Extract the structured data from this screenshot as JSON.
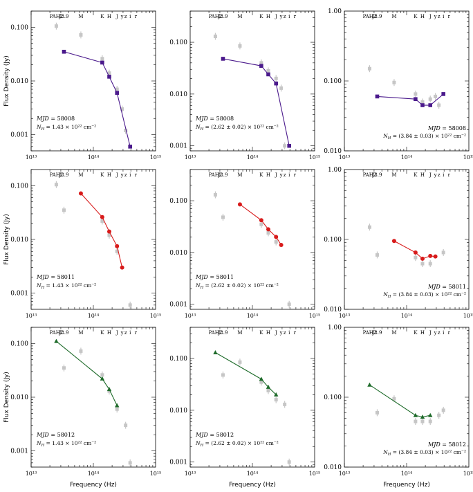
{
  "figure": {
    "y_axis_label": "Flux Density (Jy)",
    "x_axis_label": "Frequency (Hz)"
  },
  "band_labels": [
    "PAH2",
    "J8.9",
    "M",
    "K",
    "H",
    "J",
    "y",
    "z",
    "i",
    "r"
  ],
  "band_freqs": [
    25400000000000.0,
    33700000000000.0,
    63000000000000.0,
    139000000000000.0,
    180000000000000.0,
    240000000000000.0,
    290000000000000.0,
    330000000000000.0,
    390000000000000.0,
    480000000000000.0
  ],
  "colors": {
    "purple": "#4b1a8c",
    "red": "#d81b1b",
    "green": "#1e6b2a",
    "gray": "#c6c6c6"
  },
  "chart_data": [
    {
      "type": "scatter",
      "row": 0,
      "col": 0,
      "xscale": "log",
      "yscale": "log",
      "xlim": [
        10000000000000.0,
        1000000000000000.0
      ],
      "ylim": [
        0.0005,
        0.2
      ],
      "yticks": [
        0.1,
        0.01,
        0.001
      ],
      "yticklabels": [
        "0.100",
        "0.010",
        "0.001"
      ],
      "xticklabels": [
        "10¹³",
        "10¹⁴",
        "10¹⁵"
      ],
      "annotation": {
        "mjd": "MJD = 58008",
        "nh": "N_H = 1.43 × 10²² cm⁻²"
      },
      "observed": {
        "x": [
          25400000000000.0,
          63000000000000.0,
          139000000000000.0,
          180000000000000.0,
          240000000000000.0,
          290000000000000.0,
          330000000000000.0
        ],
        "y": [
          0.105,
          0.072,
          0.026,
          0.014,
          0.007,
          0.003,
          0.0012
        ]
      },
      "model": {
        "color": "#4b1a8c",
        "marker": "square",
        "x": [
          33700000000000.0,
          139000000000000.0,
          180000000000000.0,
          240000000000000.0,
          390000000000000.0
        ],
        "y": [
          0.035,
          0.022,
          0.012,
          0.006,
          0.0006
        ]
      },
      "y_axis_title": true,
      "x_axis_title": false
    },
    {
      "type": "scatter",
      "row": 0,
      "col": 1,
      "xscale": "log",
      "yscale": "log",
      "xlim": [
        10000000000000.0,
        1000000000000000.0
      ],
      "ylim": [
        0.0008,
        0.4
      ],
      "yticks": [
        0.1,
        0.01,
        0.001
      ],
      "yticklabels": [
        "0.100",
        "0.010",
        "0.001"
      ],
      "xticklabels": [
        "10¹³",
        "10¹⁴",
        "10¹⁵"
      ],
      "annotation": {
        "mjd": "MJD = 58008",
        "nh": "N_H = (2.62 ± 0.02) × 10²² cm⁻²"
      },
      "observed": {
        "x": [
          25400000000000.0,
          63000000000000.0,
          139000000000000.0,
          180000000000000.0,
          240000000000000.0,
          290000000000000.0,
          330000000000000.0
        ],
        "y": [
          0.13,
          0.085,
          0.04,
          0.028,
          0.02,
          0.013,
          0.001
        ]
      },
      "model": {
        "color": "#4b1a8c",
        "marker": "square",
        "x": [
          33700000000000.0,
          139000000000000.0,
          180000000000000.0,
          240000000000000.0,
          390000000000000.0
        ],
        "y": [
          0.048,
          0.035,
          0.024,
          0.016,
          0.001
        ]
      },
      "y_axis_title": false,
      "x_axis_title": false
    },
    {
      "type": "scatter",
      "row": 0,
      "col": 2,
      "xscale": "log",
      "yscale": "log",
      "xlim": [
        10000000000000.0,
        1000000000000000.0
      ],
      "ylim": [
        0.01,
        1.0
      ],
      "yticks": [
        1.0,
        0.1,
        0.01
      ],
      "yticklabels": [
        "1.00",
        "0.100",
        "0.010"
      ],
      "xticklabels": [
        "10¹³",
        "10¹⁴",
        "10¹⁵"
      ],
      "annotation": {
        "mjd": "MJD = 58008",
        "nh": "N_H = (3.84 ± 0.03) × 10²² cm⁻²"
      },
      "observed": {
        "x": [
          25400000000000.0,
          63000000000000.0,
          139000000000000.0,
          180000000000000.0,
          240000000000000.0,
          290000000000000.0,
          330000000000000.0
        ],
        "y": [
          0.15,
          0.095,
          0.065,
          0.05,
          0.055,
          0.06,
          0.045
        ]
      },
      "model": {
        "color": "#4b1a8c",
        "marker": "square",
        "x": [
          33700000000000.0,
          139000000000000.0,
          180000000000000.0,
          240000000000000.0,
          390000000000000.0
        ],
        "y": [
          0.06,
          0.055,
          0.045,
          0.045,
          0.065
        ]
      },
      "y_axis_title": false,
      "x_axis_title": false
    },
    {
      "type": "scatter",
      "row": 1,
      "col": 0,
      "xscale": "log",
      "yscale": "log",
      "xlim": [
        10000000000000.0,
        1000000000000000.0
      ],
      "ylim": [
        0.0005,
        0.2
      ],
      "yticks": [
        0.1,
        0.01,
        0.001
      ],
      "yticklabels": [
        "0.100",
        "0.010",
        "0.001"
      ],
      "xticklabels": [
        "10¹³",
        "10¹⁴",
        "10¹⁵"
      ],
      "annotation": {
        "mjd": "MJD = 58011",
        "nh": "N_H = 1.43 × 10²² cm⁻²"
      },
      "observed": {
        "x": [
          25400000000000.0,
          33700000000000.0,
          139000000000000.0,
          180000000000000.0,
          240000000000000.0,
          390000000000000.0
        ],
        "y": [
          0.105,
          0.035,
          0.022,
          0.012,
          0.006,
          0.0006
        ]
      },
      "model": {
        "color": "#d81b1b",
        "marker": "circle",
        "x": [
          63000000000000.0,
          139000000000000.0,
          180000000000000.0,
          240000000000000.0,
          290000000000000.0
        ],
        "y": [
          0.072,
          0.026,
          0.014,
          0.0075,
          0.003
        ]
      },
      "y_axis_title": true,
      "x_axis_title": false
    },
    {
      "type": "scatter",
      "row": 1,
      "col": 1,
      "xscale": "log",
      "yscale": "log",
      "xlim": [
        10000000000000.0,
        1000000000000000.0
      ],
      "ylim": [
        0.0008,
        0.4
      ],
      "yticks": [
        0.1,
        0.01,
        0.001
      ],
      "yticklabels": [
        "0.100",
        "0.010",
        "0.001"
      ],
      "xticklabels": [
        "10¹³",
        "10¹⁴",
        "10¹⁵"
      ],
      "annotation": {
        "mjd": "MJD = 58011",
        "nh": "N_H = (2.62 ± 0.02) × 10²² cm⁻²"
      },
      "observed": {
        "x": [
          25400000000000.0,
          33700000000000.0,
          139000000000000.0,
          180000000000000.0,
          240000000000000.0,
          390000000000000.0
        ],
        "y": [
          0.13,
          0.048,
          0.035,
          0.024,
          0.016,
          0.001
        ]
      },
      "model": {
        "color": "#d81b1b",
        "marker": "circle",
        "x": [
          63000000000000.0,
          139000000000000.0,
          180000000000000.0,
          240000000000000.0,
          290000000000000.0
        ],
        "y": [
          0.085,
          0.042,
          0.028,
          0.02,
          0.014
        ]
      },
      "y_axis_title": false,
      "x_axis_title": false
    },
    {
      "type": "scatter",
      "row": 1,
      "col": 2,
      "xscale": "log",
      "yscale": "log",
      "xlim": [
        10000000000000.0,
        1000000000000000.0
      ],
      "ylim": [
        0.01,
        1.0
      ],
      "yticks": [
        1.0,
        0.1,
        0.01
      ],
      "yticklabels": [
        "1.00",
        "0.100",
        "0.010"
      ],
      "xticklabels": [
        "10¹³",
        "10¹⁴",
        "10¹⁵"
      ],
      "annotation": {
        "mjd": "MJD = 58011",
        "nh": "N_H = (3.84 ± 0.03) × 10²² cm⁻²"
      },
      "observed": {
        "x": [
          25400000000000.0,
          33700000000000.0,
          139000000000000.0,
          180000000000000.0,
          240000000000000.0,
          390000000000000.0
        ],
        "y": [
          0.15,
          0.06,
          0.055,
          0.045,
          0.045,
          0.065
        ]
      },
      "model": {
        "color": "#d81b1b",
        "marker": "circle",
        "x": [
          63000000000000.0,
          139000000000000.0,
          180000000000000.0,
          240000000000000.0,
          290000000000000.0
        ],
        "y": [
          0.095,
          0.065,
          0.053,
          0.058,
          0.057
        ]
      },
      "y_axis_title": false,
      "x_axis_title": false
    },
    {
      "type": "scatter",
      "row": 2,
      "col": 0,
      "xscale": "log",
      "yscale": "log",
      "xlim": [
        10000000000000.0,
        1000000000000000.0
      ],
      "ylim": [
        0.0005,
        0.2
      ],
      "yticks": [
        0.1,
        0.01,
        0.001
      ],
      "yticklabels": [
        "0.100",
        "0.010",
        "0.001"
      ],
      "xticklabels": [
        "10¹³",
        "10¹⁴",
        "10¹⁵"
      ],
      "annotation": {
        "mjd": "MJD = 58012",
        "nh": "N_H = 1.43 × 10²² cm⁻²"
      },
      "observed": {
        "x": [
          33700000000000.0,
          63000000000000.0,
          139000000000000.0,
          180000000000000.0,
          240000000000000.0,
          330000000000000.0,
          390000000000000.0
        ],
        "y": [
          0.035,
          0.072,
          0.026,
          0.013,
          0.006,
          0.003,
          0.0006
        ]
      },
      "model": {
        "color": "#1e6b2a",
        "marker": "triangle",
        "x": [
          25400000000000.0,
          139000000000000.0,
          180000000000000.0,
          240000000000000.0
        ],
        "y": [
          0.11,
          0.022,
          0.014,
          0.007
        ]
      },
      "y_axis_title": true,
      "x_axis_title": true
    },
    {
      "type": "scatter",
      "row": 2,
      "col": 1,
      "xscale": "log",
      "yscale": "log",
      "xlim": [
        10000000000000.0,
        1000000000000000.0
      ],
      "ylim": [
        0.0008,
        0.4
      ],
      "yticks": [
        0.1,
        0.01,
        0.001
      ],
      "yticklabels": [
        "0.100",
        "0.010",
        "0.001"
      ],
      "xticklabels": [
        "10¹³",
        "10¹⁴",
        "10¹⁵"
      ],
      "annotation": {
        "mjd": "MJD = 58012",
        "nh": "N_H = (2.62 ± 0.02) × 10²² cm⁻²"
      },
      "observed": {
        "x": [
          33700000000000.0,
          63000000000000.0,
          139000000000000.0,
          180000000000000.0,
          240000000000000.0,
          330000000000000.0,
          390000000000000.0
        ],
        "y": [
          0.048,
          0.085,
          0.035,
          0.024,
          0.016,
          0.013,
          0.001
        ]
      },
      "model": {
        "color": "#1e6b2a",
        "marker": "triangle",
        "x": [
          25400000000000.0,
          139000000000000.0,
          180000000000000.0,
          240000000000000.0
        ],
        "y": [
          0.13,
          0.04,
          0.028,
          0.02
        ]
      },
      "y_axis_title": false,
      "x_axis_title": true
    },
    {
      "type": "scatter",
      "row": 2,
      "col": 2,
      "xscale": "log",
      "yscale": "log",
      "xlim": [
        10000000000000.0,
        1000000000000000.0
      ],
      "ylim": [
        0.01,
        1.0
      ],
      "yticks": [
        1.0,
        0.1,
        0.01
      ],
      "yticklabels": [
        "1.00",
        "0.100",
        "0.010"
      ],
      "xticklabels": [
        "10¹³",
        "10¹⁴",
        "10¹⁵"
      ],
      "annotation": {
        "mjd": "MJD = 58012",
        "nh": "N_H = (3.84 ± 0.03) × 10²² cm⁻²"
      },
      "observed": {
        "x": [
          33700000000000.0,
          63000000000000.0,
          139000000000000.0,
          180000000000000.0,
          240000000000000.0,
          330000000000000.0,
          390000000000000.0
        ],
        "y": [
          0.06,
          0.095,
          0.045,
          0.045,
          0.045,
          0.055,
          0.065
        ]
      },
      "model": {
        "color": "#1e6b2a",
        "marker": "triangle",
        "x": [
          25400000000000.0,
          139000000000000.0,
          180000000000000.0,
          240000000000000.0
        ],
        "y": [
          0.15,
          0.055,
          0.052,
          0.055
        ]
      },
      "y_axis_title": false,
      "x_axis_title": true
    }
  ]
}
